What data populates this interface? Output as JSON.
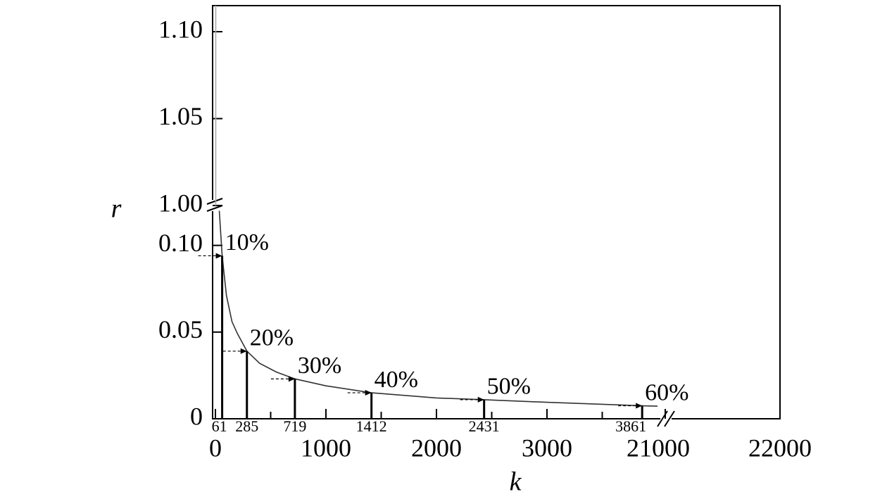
{
  "chart_data": {
    "type": "line",
    "xlabel": "k",
    "ylabel": "r",
    "x_segments": [
      {
        "xlim": [
          0,
          4070
        ],
        "xticks": [
          0,
          1000,
          2000,
          3000
        ],
        "minor_xticks": [
          500,
          1500,
          2500,
          3500
        ]
      },
      {
        "xlim": [
          21000,
          22000
        ],
        "xticks": [
          21000,
          22000
        ]
      }
    ],
    "y_segments": [
      {
        "ylim": [
          0,
          0.123
        ],
        "yticks": [
          0,
          0.05,
          {
            "value": 0.1,
            "label": "0.10"
          }
        ]
      },
      {
        "ylim": [
          1.0,
          1.115
        ],
        "yticks": [
          {
            "value": 1.0,
            "label": "1.00"
          },
          1.05,
          {
            "value": 1.1,
            "label": "1.10"
          }
        ]
      }
    ],
    "lines": [
      {
        "color": "#333333",
        "x": [
          35,
          61,
          100,
          150,
          200,
          285,
          400,
          550,
          719,
          1000,
          1412,
          2000,
          2431,
          3000,
          3861,
          4000
        ],
        "values": [
          0.12,
          0.094,
          0.071,
          0.056,
          0.049,
          0.039,
          0.032,
          0.027,
          0.023,
          0.019,
          0.015,
          0.012,
          0.011,
          0.0095,
          0.0075,
          0.0073
        ]
      },
      {
        "color": "#aaaaaa",
        "x": [
          3,
          3
        ],
        "values": [
          1.0,
          1.115
        ]
      }
    ],
    "markers": [
      {
        "k": 61,
        "r": 0.094,
        "label": "10%"
      },
      {
        "k": 285,
        "r": 0.039,
        "label": "20%"
      },
      {
        "k": 719,
        "r": 0.023,
        "label": "30%"
      },
      {
        "k": 1412,
        "r": 0.015,
        "label": "40%"
      },
      {
        "k": 2431,
        "r": 0.011,
        "label": "50%"
      },
      {
        "k": 3861,
        "r": 0.0075,
        "label": "60%"
      }
    ]
  }
}
